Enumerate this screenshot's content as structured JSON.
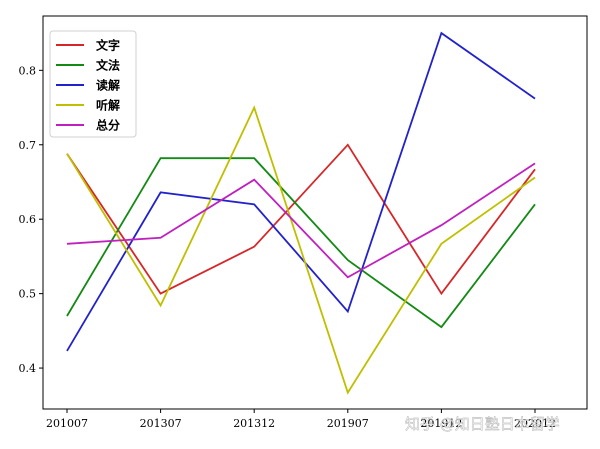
{
  "chart_data": {
    "type": "line",
    "categories": [
      "201007",
      "201307",
      "201312",
      "201907",
      "201912",
      "202012"
    ],
    "series": [
      {
        "name": "文字",
        "color": "#d62728",
        "values": [
          0.688,
          0.5,
          0.563,
          0.7,
          0.5,
          0.667
        ]
      },
      {
        "name": "文法",
        "color": "#138a13",
        "values": [
          0.47,
          0.682,
          0.682,
          0.545,
          0.455,
          0.62
        ]
      },
      {
        "name": "读解",
        "color": "#2222cc",
        "values": [
          0.423,
          0.636,
          0.62,
          0.476,
          0.85,
          0.762
        ]
      },
      {
        "name": "听解",
        "color": "#bfbf00",
        "values": [
          0.688,
          0.484,
          0.75,
          0.367,
          0.567,
          0.656
        ]
      },
      {
        "name": "总分",
        "color": "#c020c0",
        "values": [
          0.567,
          0.575,
          0.653,
          0.522,
          0.592,
          0.675
        ]
      }
    ],
    "ylim": [
      0.345,
      0.873
    ],
    "yticks": [
      0.4,
      0.5,
      0.6,
      0.7,
      0.8
    ],
    "legend_position": "top-left",
    "grid": false
  },
  "watermark": "知乎 @知日塾日本留学"
}
